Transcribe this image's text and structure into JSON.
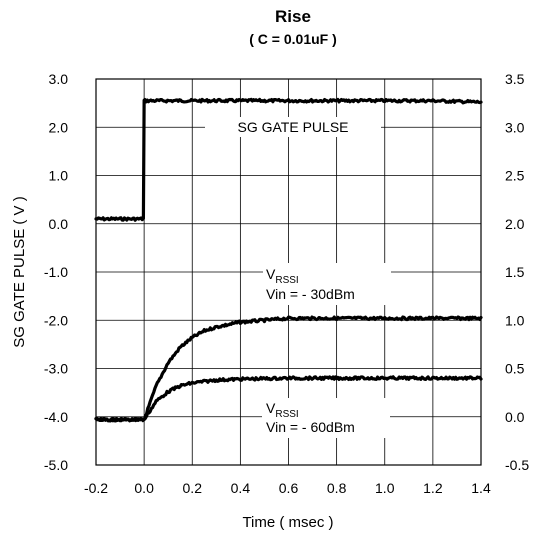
{
  "chart_data": {
    "type": "line",
    "title": "Rise",
    "subtitle": "( C = 0.01uF )",
    "xlabel": "Time ( msec )",
    "ylabel": "SG GATE PULSE ( V )",
    "ylabel_right": "",
    "xlim": [
      -0.2,
      1.4
    ],
    "ylim": [
      -5.0,
      3.0
    ],
    "ylim_right": [
      -0.5,
      3.5
    ],
    "grid": true,
    "x_ticks": [
      "-0.2",
      "0.0",
      "0.2",
      "0.4",
      "0.6",
      "0.8",
      "1.0",
      "1.2",
      "1.4"
    ],
    "y_ticks_left": [
      "3.0",
      "2.0",
      "1.0",
      "0.0",
      "-1.0",
      "-2.0",
      "-3.0",
      "-4.0",
      "-5.0"
    ],
    "y_ticks_right": [
      "3.5",
      "3.0",
      "2.5",
      "2.0",
      "1.5",
      "1.0",
      "0.5",
      "0.0",
      "-0.5"
    ],
    "series": [
      {
        "name": "SG GATE PULSE",
        "axis": "left",
        "x": [
          -0.2,
          -0.003,
          0.0,
          0.003,
          0.4,
          0.8,
          1.2,
          1.4
        ],
        "y": [
          0.1,
          0.1,
          2.55,
          2.55,
          2.55,
          2.55,
          2.55,
          2.52
        ]
      },
      {
        "name": "VRSSI Vin = - 30dBm",
        "axis": "right",
        "x": [
          -0.2,
          0.0,
          0.05,
          0.1,
          0.15,
          0.2,
          0.25,
          0.3,
          0.4,
          0.5,
          0.6,
          0.8,
          1.0,
          1.2,
          1.4
        ],
        "y": [
          -0.03,
          -0.03,
          0.32,
          0.56,
          0.72,
          0.82,
          0.89,
          0.93,
          0.98,
          1.0,
          1.02,
          1.02,
          1.02,
          1.02,
          1.02
        ]
      },
      {
        "name": "VRSSI Vin = - 60dBm",
        "axis": "right",
        "x": [
          -0.2,
          0.0,
          0.05,
          0.1,
          0.15,
          0.2,
          0.3,
          0.4,
          0.6,
          0.8,
          1.0,
          1.2,
          1.4
        ],
        "y": [
          -0.03,
          -0.03,
          0.16,
          0.26,
          0.32,
          0.35,
          0.38,
          0.39,
          0.4,
          0.4,
          0.4,
          0.4,
          0.4
        ]
      }
    ],
    "annotations": {
      "gate": {
        "text": "SG GATE PULSE"
      },
      "v30": {
        "v": "V",
        "sub": "RSSI",
        "line2": "Vin = - 30dBm"
      },
      "v60": {
        "v": "V",
        "sub": "RSSI",
        "line2": "Vin = - 60dBm"
      }
    }
  }
}
